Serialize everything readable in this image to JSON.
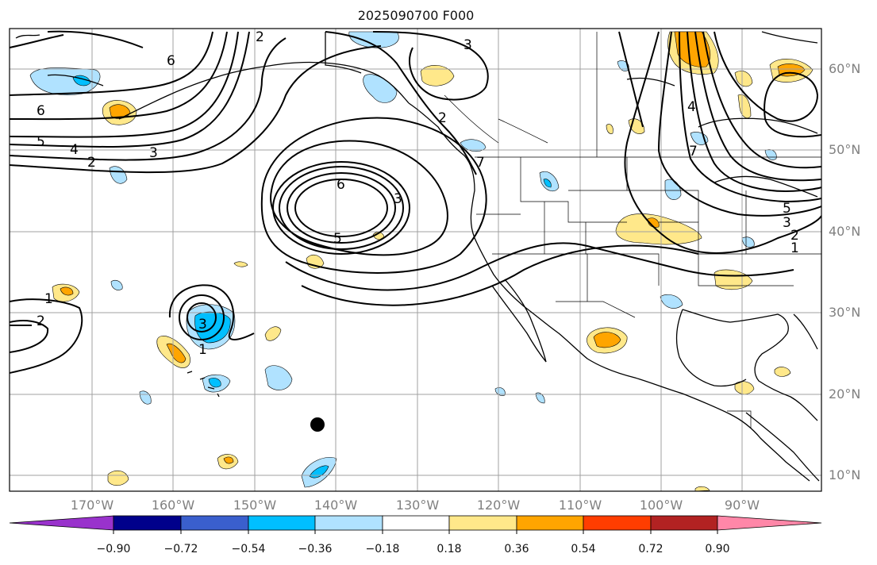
{
  "title": "2025090700 F000",
  "lat_labels": [
    "60°N",
    "50°N",
    "40°N",
    "30°N",
    "20°N",
    "10°N"
  ],
  "lon_labels": [
    "170°W",
    "160°W",
    "150°W",
    "140°W",
    "130°W",
    "120°W",
    "110°W",
    "100°W",
    "90°W"
  ],
  "colorbar": {
    "tick_labels": [
      "−0.90",
      "−0.72",
      "−0.54",
      "−0.36",
      "−0.18",
      "0.18",
      "0.36",
      "0.54",
      "0.72",
      "0.90"
    ],
    "colors": [
      "#9932cc",
      "#00008b",
      "#3a5fcd",
      "#00bfff",
      "#b0e2ff",
      "#ffffff",
      "#ffe88a",
      "#ffa500",
      "#ff3d00",
      "#b22222",
      "#ff87a8"
    ]
  },
  "contour_labels": [
    "6",
    "5",
    "4",
    "3",
    "2",
    "2",
    "3",
    "2",
    "6",
    "5",
    "3",
    "7",
    "1",
    "2",
    "3",
    "1",
    "6",
    "5",
    "2",
    "3",
    "1",
    "4",
    "7"
  ],
  "marker": "black-dot"
}
